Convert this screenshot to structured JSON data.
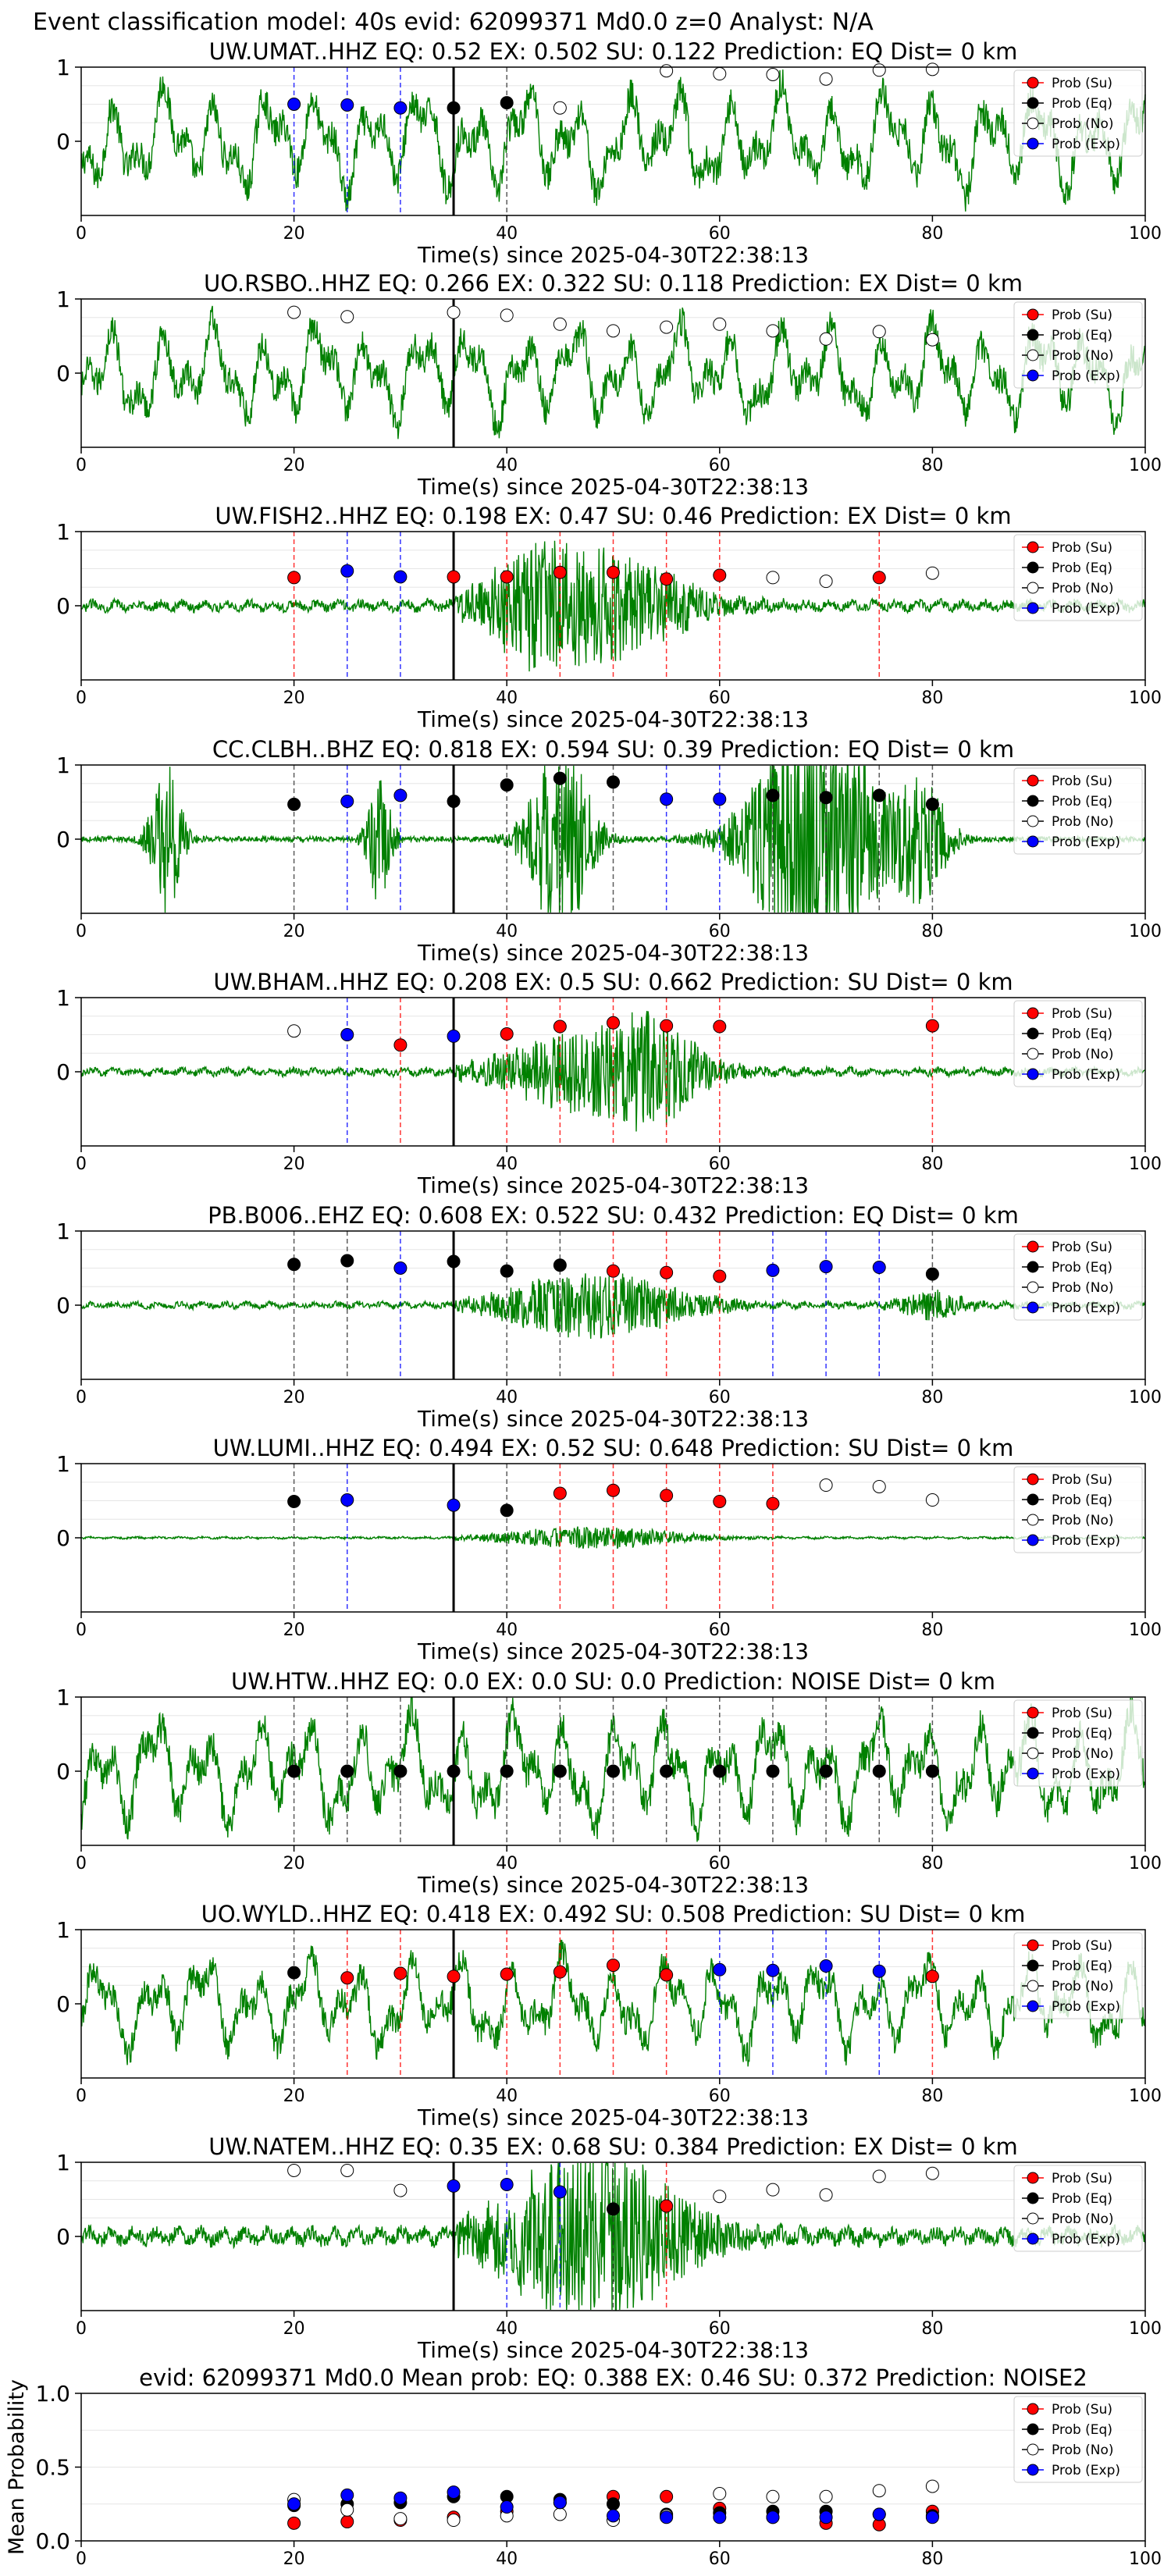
{
  "figure_title": "Event classification model: 40s evid: 62099371 Md0.0 z=0 Analyst: N/A",
  "legend_labels": [
    "Prob (Su)",
    "Prob (Eq)",
    "Prob (No)",
    "Prob (Exp)"
  ],
  "colors": {
    "su": "#ff0000",
    "eq": "#000000",
    "no": "#ffffff",
    "exp": "#0000ff",
    "waveform": "#008000",
    "origin_line": "#000000"
  },
  "chart_data": [
    {
      "type": "line",
      "title": "UW.UMAT..HHZ   EQ: 0.52  EX: 0.502  SU: 0.122   Prediction: EQ    Dist= 0 km",
      "xlabel": "Time(s) since 2025-04-30T22:38:13",
      "ylabel": "",
      "xlim": [
        0,
        100
      ],
      "ylim": [
        -1,
        1
      ],
      "x_ticks": [
        0,
        20,
        40,
        60,
        80,
        100
      ],
      "y_ticks": [
        0,
        1
      ],
      "waveform": {
        "style": "noisy",
        "amplitude": 0.85
      },
      "origin_time": 35,
      "points": [
        {
          "x": 20,
          "y": 0.5,
          "class": "exp"
        },
        {
          "x": 25,
          "y": 0.49,
          "class": "exp"
        },
        {
          "x": 30,
          "y": 0.45,
          "class": "exp"
        },
        {
          "x": 35,
          "y": 0.45,
          "class": "eq"
        },
        {
          "x": 40,
          "y": 0.52,
          "class": "eq"
        },
        {
          "x": 45,
          "y": 0.45,
          "class": "no"
        },
        {
          "x": 55,
          "y": 0.95,
          "class": "no"
        },
        {
          "x": 60,
          "y": 0.91,
          "class": "no"
        },
        {
          "x": 65,
          "y": 0.9,
          "class": "no"
        },
        {
          "x": 70,
          "y": 0.84,
          "class": "no"
        },
        {
          "x": 75,
          "y": 0.96,
          "class": "no"
        },
        {
          "x": 80,
          "y": 0.97,
          "class": "no"
        }
      ]
    },
    {
      "type": "line",
      "title": "UO.RSBO..HHZ   EQ: 0.266  EX: 0.322  SU: 0.118   Prediction: EX    Dist= 0 km",
      "xlabel": "Time(s) since 2025-04-30T22:38:13",
      "ylabel": "",
      "xlim": [
        0,
        100
      ],
      "ylim": [
        -1,
        1
      ],
      "x_ticks": [
        0,
        20,
        40,
        60,
        80,
        100
      ],
      "y_ticks": [
        0,
        1
      ],
      "waveform": {
        "style": "noisy",
        "amplitude": 0.8
      },
      "origin_time": 35,
      "points": [
        {
          "x": 20,
          "y": 0.82,
          "class": "no"
        },
        {
          "x": 25,
          "y": 0.76,
          "class": "no"
        },
        {
          "x": 35,
          "y": 0.82,
          "class": "no"
        },
        {
          "x": 40,
          "y": 0.78,
          "class": "no"
        },
        {
          "x": 45,
          "y": 0.66,
          "class": "no"
        },
        {
          "x": 50,
          "y": 0.57,
          "class": "no"
        },
        {
          "x": 55,
          "y": 0.62,
          "class": "no"
        },
        {
          "x": 60,
          "y": 0.66,
          "class": "no"
        },
        {
          "x": 65,
          "y": 0.57,
          "class": "no"
        },
        {
          "x": 70,
          "y": 0.46,
          "class": "no"
        },
        {
          "x": 75,
          "y": 0.56,
          "class": "no"
        },
        {
          "x": 80,
          "y": 0.45,
          "class": "no"
        }
      ]
    },
    {
      "type": "line",
      "title": "UW.FISH2..HHZ   EQ: 0.198  EX: 0.47  SU: 0.46   Prediction: EX    Dist= 0 km",
      "xlabel": "Time(s) since 2025-04-30T22:38:13",
      "ylabel": "",
      "xlim": [
        0,
        100
      ],
      "ylim": [
        -1,
        1
      ],
      "x_ticks": [
        0,
        20,
        40,
        60,
        80,
        100
      ],
      "y_ticks": [
        0,
        1
      ],
      "waveform": {
        "style": "event",
        "amplitude": 0.25
      },
      "origin_time": 35,
      "points": [
        {
          "x": 20,
          "y": 0.38,
          "class": "su"
        },
        {
          "x": 25,
          "y": 0.47,
          "class": "exp"
        },
        {
          "x": 30,
          "y": 0.39,
          "class": "exp"
        },
        {
          "x": 35,
          "y": 0.39,
          "class": "su"
        },
        {
          "x": 40,
          "y": 0.39,
          "class": "su"
        },
        {
          "x": 45,
          "y": 0.45,
          "class": "su"
        },
        {
          "x": 50,
          "y": 0.45,
          "class": "su"
        },
        {
          "x": 55,
          "y": 0.36,
          "class": "su"
        },
        {
          "x": 60,
          "y": 0.41,
          "class": "su"
        },
        {
          "x": 65,
          "y": 0.38,
          "class": "no"
        },
        {
          "x": 70,
          "y": 0.33,
          "class": "no"
        },
        {
          "x": 75,
          "y": 0.38,
          "class": "su"
        },
        {
          "x": 80,
          "y": 0.44,
          "class": "no"
        }
      ]
    },
    {
      "type": "line",
      "title": "CC.CLBH..BHZ   EQ: 0.818  EX: 0.594  SU: 0.39   Prediction: EQ    Dist= 0 km",
      "xlabel": "Time(s) since 2025-04-30T22:38:13",
      "ylabel": "",
      "xlim": [
        0,
        100
      ],
      "ylim": [
        -1,
        1
      ],
      "x_ticks": [
        0,
        20,
        40,
        60,
        80,
        100
      ],
      "y_ticks": [
        0,
        1
      ],
      "waveform": {
        "style": "quiet_bursts",
        "amplitude": 0.05
      },
      "origin_time": 35,
      "points": [
        {
          "x": 20,
          "y": 0.47,
          "class": "eq"
        },
        {
          "x": 25,
          "y": 0.51,
          "class": "exp"
        },
        {
          "x": 30,
          "y": 0.59,
          "class": "exp"
        },
        {
          "x": 35,
          "y": 0.51,
          "class": "eq"
        },
        {
          "x": 40,
          "y": 0.73,
          "class": "eq"
        },
        {
          "x": 45,
          "y": 0.82,
          "class": "eq"
        },
        {
          "x": 50,
          "y": 0.77,
          "class": "eq"
        },
        {
          "x": 55,
          "y": 0.54,
          "class": "exp"
        },
        {
          "x": 60,
          "y": 0.54,
          "class": "exp"
        },
        {
          "x": 65,
          "y": 0.59,
          "class": "eq"
        },
        {
          "x": 70,
          "y": 0.56,
          "class": "eq"
        },
        {
          "x": 75,
          "y": 0.59,
          "class": "eq"
        },
        {
          "x": 80,
          "y": 0.47,
          "class": "eq"
        }
      ]
    },
    {
      "type": "line",
      "title": "UW.BHAM..HHZ   EQ: 0.208  EX: 0.5  SU: 0.662   Prediction: SU    Dist= 0 km",
      "xlabel": "Time(s) since 2025-04-30T22:38:13",
      "ylabel": "",
      "xlim": [
        0,
        100
      ],
      "ylim": [
        -1,
        1
      ],
      "x_ticks": [
        0,
        20,
        40,
        60,
        80,
        100
      ],
      "y_ticks": [
        0,
        1
      ],
      "waveform": {
        "style": "event",
        "amplitude": 0.18
      },
      "origin_time": 35,
      "points": [
        {
          "x": 20,
          "y": 0.55,
          "class": "no"
        },
        {
          "x": 25,
          "y": 0.5,
          "class": "exp"
        },
        {
          "x": 30,
          "y": 0.36,
          "class": "su"
        },
        {
          "x": 35,
          "y": 0.48,
          "class": "exp"
        },
        {
          "x": 40,
          "y": 0.51,
          "class": "su"
        },
        {
          "x": 45,
          "y": 0.61,
          "class": "su"
        },
        {
          "x": 50,
          "y": 0.66,
          "class": "su"
        },
        {
          "x": 55,
          "y": 0.62,
          "class": "su"
        },
        {
          "x": 60,
          "y": 0.61,
          "class": "su"
        },
        {
          "x": 80,
          "y": 0.62,
          "class": "su"
        }
      ]
    },
    {
      "type": "line",
      "title": "PB.B006..EHZ   EQ: 0.608  EX: 0.522  SU: 0.432   Prediction: EQ    Dist= 0 km",
      "xlabel": "Time(s) since 2025-04-30T22:38:13",
      "ylabel": "",
      "xlim": [
        0,
        100
      ],
      "ylim": [
        -1,
        1
      ],
      "x_ticks": [
        0,
        20,
        40,
        60,
        80,
        100
      ],
      "y_ticks": [
        0,
        1
      ],
      "waveform": {
        "style": "event",
        "amplitude": 0.15
      },
      "origin_time": 35,
      "points": [
        {
          "x": 20,
          "y": 0.55,
          "class": "eq"
        },
        {
          "x": 25,
          "y": 0.6,
          "class": "eq"
        },
        {
          "x": 30,
          "y": 0.5,
          "class": "exp"
        },
        {
          "x": 35,
          "y": 0.59,
          "class": "eq"
        },
        {
          "x": 40,
          "y": 0.46,
          "class": "eq"
        },
        {
          "x": 45,
          "y": 0.54,
          "class": "eq"
        },
        {
          "x": 50,
          "y": 0.46,
          "class": "su"
        },
        {
          "x": 55,
          "y": 0.44,
          "class": "su"
        },
        {
          "x": 60,
          "y": 0.39,
          "class": "su"
        },
        {
          "x": 65,
          "y": 0.47,
          "class": "exp"
        },
        {
          "x": 70,
          "y": 0.52,
          "class": "exp"
        },
        {
          "x": 75,
          "y": 0.51,
          "class": "exp"
        },
        {
          "x": 80,
          "y": 0.42,
          "class": "eq"
        }
      ]
    },
    {
      "type": "line",
      "title": "UW.LUMI..HHZ   EQ: 0.494  EX: 0.52  SU: 0.648   Prediction: SU    Dist= 0 km",
      "xlabel": "Time(s) since 2025-04-30T22:38:13",
      "ylabel": "",
      "xlim": [
        0,
        100
      ],
      "ylim": [
        -1,
        1
      ],
      "x_ticks": [
        0,
        20,
        40,
        60,
        80,
        100
      ],
      "y_ticks": [
        0,
        1
      ],
      "waveform": {
        "style": "event",
        "amplitude": 0.05
      },
      "origin_time": 35,
      "points": [
        {
          "x": 20,
          "y": 0.49,
          "class": "eq"
        },
        {
          "x": 25,
          "y": 0.51,
          "class": "exp"
        },
        {
          "x": 35,
          "y": 0.44,
          "class": "exp"
        },
        {
          "x": 40,
          "y": 0.37,
          "class": "eq"
        },
        {
          "x": 45,
          "y": 0.6,
          "class": "su"
        },
        {
          "x": 50,
          "y": 0.64,
          "class": "su"
        },
        {
          "x": 55,
          "y": 0.57,
          "class": "su"
        },
        {
          "x": 60,
          "y": 0.49,
          "class": "su"
        },
        {
          "x": 65,
          "y": 0.46,
          "class": "su"
        },
        {
          "x": 70,
          "y": 0.71,
          "class": "no"
        },
        {
          "x": 75,
          "y": 0.69,
          "class": "no"
        },
        {
          "x": 80,
          "y": 0.51,
          "class": "no"
        }
      ]
    },
    {
      "type": "line",
      "title": "UW.HTW..HHZ   EQ: 0.0  EX: 0.0  SU: 0.0   Prediction: NOISE    Dist= 0 km",
      "xlabel": "Time(s) since 2025-04-30T22:38:13",
      "ylabel": "",
      "xlim": [
        0,
        100
      ],
      "ylim": [
        -1,
        1
      ],
      "x_ticks": [
        0,
        20,
        40,
        60,
        80,
        100
      ],
      "y_ticks": [
        0,
        1
      ],
      "waveform": {
        "style": "noisy",
        "amplitude": 0.9
      },
      "origin_time": 35,
      "points": [
        {
          "x": 20,
          "y": 0.0,
          "class": "eq"
        },
        {
          "x": 25,
          "y": 0.0,
          "class": "eq"
        },
        {
          "x": 30,
          "y": 0.0,
          "class": "eq"
        },
        {
          "x": 35,
          "y": 0.0,
          "class": "eq"
        },
        {
          "x": 40,
          "y": 0.0,
          "class": "eq"
        },
        {
          "x": 45,
          "y": 0.0,
          "class": "eq"
        },
        {
          "x": 50,
          "y": 0.0,
          "class": "eq"
        },
        {
          "x": 55,
          "y": 0.0,
          "class": "eq"
        },
        {
          "x": 60,
          "y": 0.0,
          "class": "eq"
        },
        {
          "x": 65,
          "y": 0.0,
          "class": "eq"
        },
        {
          "x": 70,
          "y": 0.0,
          "class": "eq"
        },
        {
          "x": 75,
          "y": 0.0,
          "class": "eq"
        },
        {
          "x": 80,
          "y": 0.0,
          "class": "eq"
        }
      ]
    },
    {
      "type": "line",
      "title": "UO.WYLD..HHZ   EQ: 0.418  EX: 0.492  SU: 0.508   Prediction: SU    Dist= 0 km",
      "xlabel": "Time(s) since 2025-04-30T22:38:13",
      "ylabel": "",
      "xlim": [
        0,
        100
      ],
      "ylim": [
        -1,
        1
      ],
      "x_ticks": [
        0,
        20,
        40,
        60,
        80,
        100
      ],
      "y_ticks": [
        0,
        1
      ],
      "waveform": {
        "style": "noisy",
        "amplitude": 0.75
      },
      "origin_time": 35,
      "points": [
        {
          "x": 20,
          "y": 0.42,
          "class": "eq"
        },
        {
          "x": 25,
          "y": 0.35,
          "class": "su"
        },
        {
          "x": 30,
          "y": 0.41,
          "class": "su"
        },
        {
          "x": 35,
          "y": 0.37,
          "class": "su"
        },
        {
          "x": 40,
          "y": 0.4,
          "class": "su"
        },
        {
          "x": 45,
          "y": 0.43,
          "class": "su"
        },
        {
          "x": 50,
          "y": 0.52,
          "class": "su"
        },
        {
          "x": 55,
          "y": 0.39,
          "class": "su"
        },
        {
          "x": 60,
          "y": 0.46,
          "class": "exp"
        },
        {
          "x": 65,
          "y": 0.45,
          "class": "exp"
        },
        {
          "x": 70,
          "y": 0.51,
          "class": "exp"
        },
        {
          "x": 75,
          "y": 0.44,
          "class": "exp"
        },
        {
          "x": 80,
          "y": 0.37,
          "class": "su"
        }
      ]
    },
    {
      "type": "line",
      "title": "UW.NATEM..HHZ   EQ: 0.35  EX: 0.68  SU: 0.384   Prediction: EX    Dist= 0 km",
      "xlabel": "Time(s) since 2025-04-30T22:38:13",
      "ylabel": "",
      "xlim": [
        0,
        100
      ],
      "ylim": [
        -1,
        1
      ],
      "x_ticks": [
        0,
        20,
        40,
        60,
        80,
        100
      ],
      "y_ticks": [
        0,
        1
      ],
      "waveform": {
        "style": "event",
        "amplitude": 0.4
      },
      "origin_time": 35,
      "points": [
        {
          "x": 20,
          "y": 0.89,
          "class": "no"
        },
        {
          "x": 25,
          "y": 0.89,
          "class": "no"
        },
        {
          "x": 30,
          "y": 0.62,
          "class": "no"
        },
        {
          "x": 35,
          "y": 0.68,
          "class": "exp"
        },
        {
          "x": 40,
          "y": 0.7,
          "class": "exp"
        },
        {
          "x": 45,
          "y": 0.6,
          "class": "exp"
        },
        {
          "x": 50,
          "y": 0.37,
          "class": "eq"
        },
        {
          "x": 55,
          "y": 0.41,
          "class": "su"
        },
        {
          "x": 60,
          "y": 0.54,
          "class": "no"
        },
        {
          "x": 65,
          "y": 0.63,
          "class": "no"
        },
        {
          "x": 70,
          "y": 0.56,
          "class": "no"
        },
        {
          "x": 75,
          "y": 0.81,
          "class": "no"
        },
        {
          "x": 80,
          "y": 0.85,
          "class": "no"
        }
      ]
    },
    {
      "type": "scatter",
      "title": "evid: 62099371  Md0.0   Mean prob:   EQ: 0.388  EX: 0.46  SU: 0.372   Prediction: NOISE2",
      "xlabel": "",
      "ylabel": "Mean Probability",
      "xlim": [
        0,
        100
      ],
      "ylim": [
        0,
        1
      ],
      "x_ticks": [
        0,
        20,
        40,
        60,
        80,
        100
      ],
      "y_ticks": [
        0.0,
        0.5,
        1.0
      ],
      "series": [
        {
          "name": "Prob (Su)",
          "class": "su",
          "x": [
            20,
            25,
            30,
            35,
            40,
            45,
            50,
            55,
            60,
            65,
            70,
            75,
            80
          ],
          "y": [
            0.12,
            0.13,
            0.14,
            0.16,
            0.2,
            0.26,
            0.3,
            0.3,
            0.22,
            0.16,
            0.12,
            0.11,
            0.2
          ]
        },
        {
          "name": "Prob (Eq)",
          "class": "eq",
          "x": [
            20,
            25,
            30,
            35,
            40,
            45,
            50,
            55,
            60,
            65,
            70,
            75,
            80
          ],
          "y": [
            0.24,
            0.25,
            0.26,
            0.3,
            0.3,
            0.28,
            0.25,
            0.18,
            0.19,
            0.2,
            0.2,
            0.18,
            0.17
          ]
        },
        {
          "name": "Prob (No)",
          "class": "no",
          "x": [
            20,
            25,
            30,
            35,
            40,
            45,
            50,
            55,
            60,
            65,
            70,
            75,
            80
          ],
          "y": [
            0.28,
            0.21,
            0.15,
            0.14,
            0.17,
            0.18,
            0.14,
            0.17,
            0.32,
            0.3,
            0.3,
            0.34,
            0.37
          ]
        },
        {
          "name": "Prob (Exp)",
          "class": "exp",
          "x": [
            20,
            25,
            30,
            35,
            40,
            45,
            50,
            55,
            60,
            65,
            70,
            75,
            80
          ],
          "y": [
            0.25,
            0.31,
            0.29,
            0.33,
            0.23,
            0.26,
            0.17,
            0.16,
            0.16,
            0.16,
            0.16,
            0.18,
            0.16
          ]
        }
      ]
    }
  ]
}
